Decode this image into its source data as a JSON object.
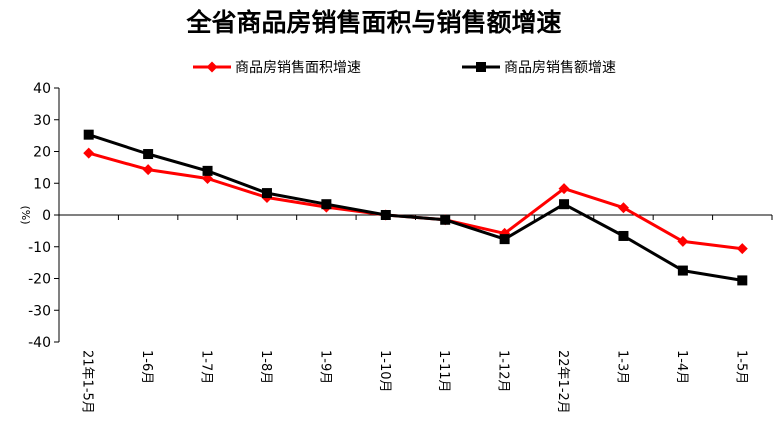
{
  "chart_data": {
    "type": "line",
    "title": "全省商品房销售面积与销售额增速",
    "ylabel": "(%)",
    "xlabel": "",
    "ylim": [
      -40,
      40
    ],
    "yticks": [
      40,
      30,
      20,
      10,
      0,
      -10,
      -20,
      -30,
      -40
    ],
    "categories": [
      "21年1-5月",
      "1-6月",
      "1-7月",
      "1-8月",
      "1-9月",
      "1-10月",
      "1-11月",
      "1-12月",
      "22年1-2月",
      "1-3月",
      "1-4月",
      "1-5月"
    ],
    "legend_position": "top",
    "grid": false,
    "series": [
      {
        "name": "商品房销售面积增速",
        "color": "#ff0000",
        "marker": "diamond",
        "values": [
          19.5,
          14.3,
          11.5,
          5.5,
          2.5,
          0.0,
          -1.5,
          -5.8,
          8.3,
          2.3,
          -8.3,
          -10.6
        ]
      },
      {
        "name": "商品房销售额增速",
        "color": "#000000",
        "marker": "square",
        "values": [
          25.3,
          19.2,
          13.9,
          6.9,
          3.4,
          0.0,
          -1.5,
          -7.6,
          3.4,
          -6.6,
          -17.5,
          -20.6
        ]
      }
    ]
  }
}
